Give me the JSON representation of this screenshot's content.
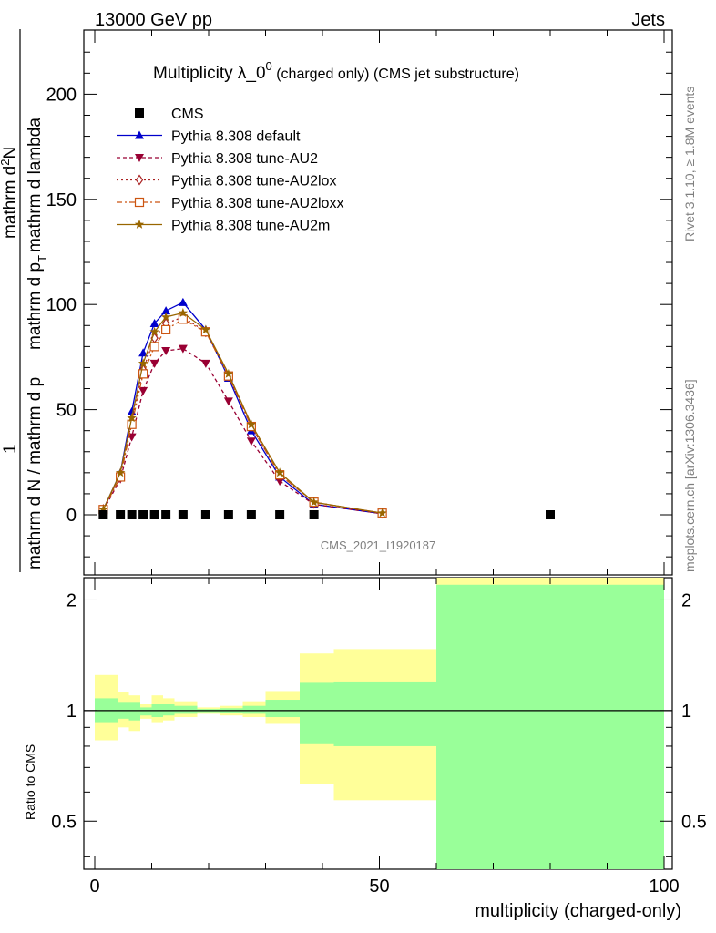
{
  "header": {
    "energy": "13000 GeV pp",
    "process": "Jets",
    "rivet": "Rivet 3.1.10, ≥ 1.8M events",
    "source": "mcplots.cern.ch [arXiv:1306.3436]"
  },
  "chart_data": {
    "type": "line",
    "title": "Multiplicity λ_0",
    "title_sup": "0",
    "title_suffix": " (charged only) (CMS jet substructure)",
    "analysis_tag": "CMS_2021_I1920187",
    "ylabel_num": "1",
    "ylabel_den": "mathrm d N / mathrm d p",
    "ylabel_num2": "mathrm d",
    "ylabel_num2_sup": "2",
    "ylabel_num2_rest": "N",
    "ylabel_den2": "mathrm d p",
    "ylabel_den2_rest": "mathrm d lambda",
    "ylabel_sub": "T",
    "xlabel": "multiplicity (charged-only)",
    "ratio_ylabel": "Ratio to CMS",
    "xlim": [
      0,
      100
    ],
    "ylim": [
      -25,
      230
    ],
    "ratio_ylim": [
      0.37,
      2.3
    ],
    "x_ticks": [
      "0",
      "50",
      "100"
    ],
    "y_ticks": [
      "0",
      "50",
      "100",
      "150",
      "200"
    ],
    "ratio_ticks": [
      "0.5",
      "1",
      "2"
    ],
    "legend_position": "top-left",
    "cms": {
      "name": "CMS",
      "x": [
        1.5,
        4.5,
        6.5,
        8.5,
        10.5,
        12.5,
        15.5,
        19.5,
        23.5,
        27.5,
        32.5,
        38.5,
        80
      ],
      "y": [
        0,
        0,
        0,
        0,
        0,
        0,
        0,
        0,
        0,
        0,
        0,
        0,
        0
      ]
    },
    "series": [
      {
        "name": "Pythia 8.308 default",
        "color": "#0000cc",
        "marker": "triangle-up",
        "dash": "",
        "x": [
          1.5,
          4.5,
          6.5,
          8.5,
          10.5,
          12.5,
          15.5,
          19.5,
          23.5,
          27.5,
          32.5,
          38.5,
          50.5
        ],
        "y": [
          2.5,
          20,
          49,
          77,
          91,
          97,
          101,
          88,
          65,
          40,
          18,
          5,
          0.5
        ]
      },
      {
        "name": "Pythia 8.308 tune-AU2",
        "color": "#990033",
        "marker": "triangle-down",
        "dash": "4,3",
        "x": [
          1.5,
          4.5,
          6.5,
          8.5,
          10.5,
          12.5,
          15.5,
          19.5,
          23.5,
          27.5,
          32.5,
          38.5,
          50.5
        ],
        "y": [
          2,
          17,
          37,
          59,
          72,
          78,
          79,
          72,
          54,
          35,
          16,
          5,
          0.5
        ]
      },
      {
        "name": "Pythia 8.308 tune-AU2lox",
        "color": "#aa2222",
        "marker": "diamond-open",
        "dash": "2,3",
        "x": [
          1.5,
          4.5,
          6.5,
          8.5,
          10.5,
          12.5,
          15.5,
          19.5,
          23.5,
          27.5,
          32.5,
          38.5,
          50.5
        ],
        "y": [
          2.5,
          19,
          44,
          69,
          84,
          91,
          94,
          87,
          66,
          42,
          19,
          6,
          0.8
        ]
      },
      {
        "name": "Pythia 8.308 tune-AU2loxx",
        "color": "#cc5511",
        "marker": "square-open",
        "dash": "6,3,2,3",
        "x": [
          1.5,
          4.5,
          6.5,
          8.5,
          10.5,
          12.5,
          15.5,
          19.5,
          23.5,
          27.5,
          32.5,
          38.5,
          50.5
        ],
        "y": [
          2.5,
          18,
          43,
          67,
          80,
          88,
          93,
          87,
          66,
          42,
          19,
          6,
          0.8
        ]
      },
      {
        "name": "Pythia 8.308 tune-AU2m",
        "color": "#996600",
        "marker": "star",
        "dash": "",
        "x": [
          1.5,
          4.5,
          6.5,
          8.5,
          10.5,
          12.5,
          15.5,
          19.5,
          23.5,
          27.5,
          32.5,
          38.5,
          50.5
        ],
        "y": [
          2.5,
          20,
          46,
          72,
          87,
          94,
          96,
          88,
          67,
          43,
          20,
          6,
          0.8
        ]
      }
    ],
    "ratio_bands": [
      {
        "x0": 0,
        "x1": 4,
        "y_lo": 0.83,
        "y_hi": 1.25,
        "g_lo": 0.93,
        "g_hi": 1.08
      },
      {
        "x0": 4,
        "x1": 6,
        "y_lo": 0.9,
        "y_hi": 1.12,
        "g_lo": 0.95,
        "g_hi": 1.05
      },
      {
        "x0": 6,
        "x1": 8,
        "y_lo": 0.88,
        "y_hi": 1.1,
        "g_lo": 0.94,
        "g_hi": 1.05
      },
      {
        "x0": 8,
        "x1": 10,
        "y_lo": 0.95,
        "y_hi": 1.04,
        "g_lo": 0.97,
        "g_hi": 1.02
      },
      {
        "x0": 10,
        "x1": 12,
        "y_lo": 0.93,
        "y_hi": 1.1,
        "g_lo": 0.96,
        "g_hi": 1.04
      },
      {
        "x0": 12,
        "x1": 14,
        "y_lo": 0.94,
        "y_hi": 1.08,
        "g_lo": 0.97,
        "g_hi": 1.04
      },
      {
        "x0": 14,
        "x1": 18,
        "y_lo": 0.96,
        "y_hi": 1.06,
        "g_lo": 0.98,
        "g_hi": 1.03
      },
      {
        "x0": 18,
        "x1": 22,
        "y_lo": 0.98,
        "y_hi": 1.02,
        "g_lo": 0.99,
        "g_hi": 1.01
      },
      {
        "x0": 22,
        "x1": 26,
        "y_lo": 0.97,
        "y_hi": 1.03,
        "g_lo": 0.985,
        "g_hi": 1.015
      },
      {
        "x0": 26,
        "x1": 30,
        "y_lo": 0.96,
        "y_hi": 1.06,
        "g_lo": 0.98,
        "g_hi": 1.03
      },
      {
        "x0": 30,
        "x1": 36,
        "y_lo": 0.92,
        "y_hi": 1.13,
        "g_lo": 0.96,
        "g_hi": 1.07
      },
      {
        "x0": 36,
        "x1": 42,
        "y_lo": 0.63,
        "y_hi": 1.43,
        "g_lo": 0.81,
        "g_hi": 1.19
      },
      {
        "x0": 42,
        "x1": 60,
        "y_lo": 0.57,
        "y_hi": 1.47,
        "g_lo": 0.8,
        "g_hi": 1.2
      },
      {
        "x0": 60,
        "x1": 100,
        "y_lo": 0.37,
        "y_hi": 2.3,
        "g_lo": 0.37,
        "g_hi": 2.2
      }
    ]
  }
}
